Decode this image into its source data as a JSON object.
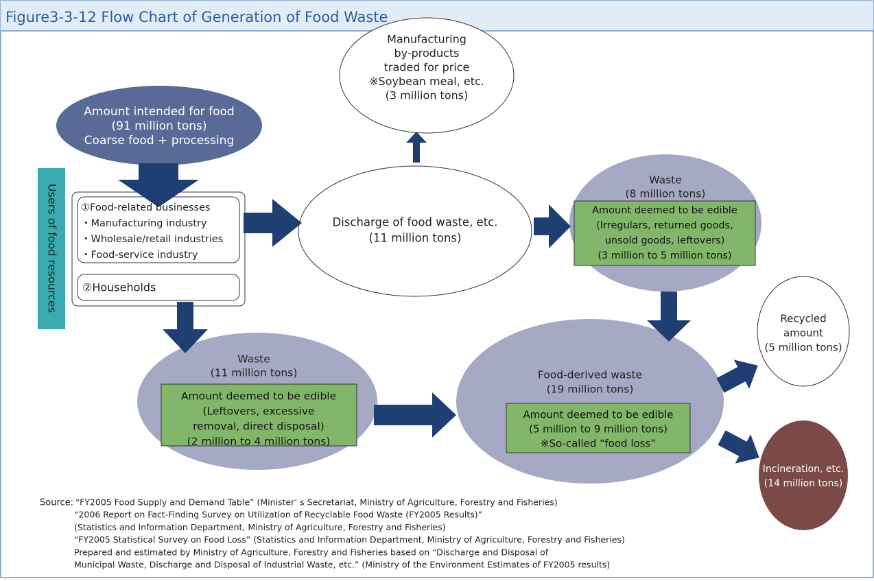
{
  "title": "Figure3-3-12 Flow Chart of Generation of Food Waste",
  "intended": {
    "lines": [
      "Amount intended for food",
      "(91 million tons)",
      "Coarse food + processing"
    ]
  },
  "users_label": "Users of food resources",
  "businesses": {
    "items": [
      "①Food-related businesses",
      "・Manufacturing industry",
      "・Wholesale/retail industries",
      "・Food-service industry"
    ]
  },
  "households": "②Households",
  "discharge": {
    "lines": [
      "Discharge of food waste, etc.",
      "(11 million tons)"
    ]
  },
  "byproducts": {
    "lines": [
      "Manufacturing",
      "by-products",
      "traded for price",
      "※Soybean meal, etc.",
      "(3 million tons)"
    ]
  },
  "waste_business": {
    "lines": [
      "Waste",
      "(8 million tons)"
    ],
    "edible": [
      "Amount deemed to be edible",
      "(Irregulars, returned goods,",
      "unsold goods, leftovers)",
      "(3 million to 5 million tons)"
    ]
  },
  "waste_household": {
    "lines": [
      "Waste",
      "(11 million tons)"
    ],
    "edible": [
      "Amount deemed to be edible",
      "(Leftovers, excessive",
      "removal, direct disposal)",
      "(2 million to 4 million tons)"
    ]
  },
  "food_derived": {
    "lines": [
      "Food-derived waste",
      "(19 million tons)"
    ],
    "edible": [
      "Amount deemed to be edible",
      "(5 million to 9 million tons)",
      "※So-called “food loss”"
    ]
  },
  "recycled": {
    "lines": [
      "Recycled",
      "amount",
      "(5 million tons)"
    ]
  },
  "incineration": {
    "lines": [
      "Incineration, etc.",
      "(14 million tons)"
    ]
  },
  "source": {
    "label": "Source:",
    "lines": [
      "“FY2005 Food Supply and Demand Table” (Minister’ s Secretariat, Ministry of Agriculture, Forestry and Fisheries)",
      "“2006 Report on Fact-Finding Survey on Utilization of Recyclable Food Waste (FY2005 Results)”",
      "(Statistics and Information Department, Ministry of Agriculture, Forestry and Fisheries)",
      "“FY2005 Statistical Survey on Food Loss” (Statistics and Information Department, Ministry of Agriculture, Forestry and Fisheries)",
      "Prepared and estimated by Ministry of Agriculture, Forestry and Fisheries based on “Discharge and Disposal of",
      "Municipal Waste, Discharge and Disposal of Industrial Waste, etc.” (Ministry of the Environment Estimates of FY2005 results)"
    ]
  }
}
